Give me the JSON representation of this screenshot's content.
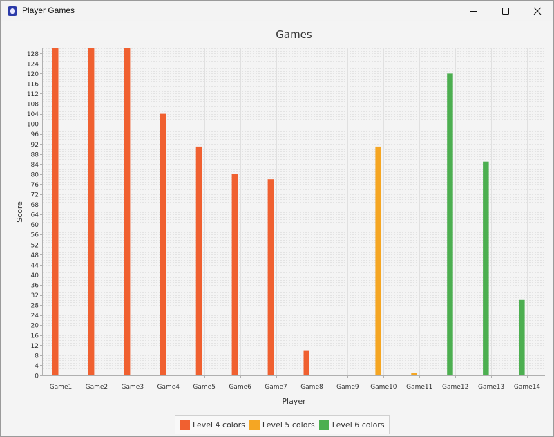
{
  "window": {
    "title": "Player Games"
  },
  "chart_data": {
    "type": "bar",
    "title": "Games",
    "xlabel": "Player",
    "ylabel": "Score",
    "ylim": [
      0,
      130
    ],
    "yticks_step": 4,
    "grid": true,
    "legend_position": "bottom",
    "categories": [
      "Game1",
      "Game2",
      "Game3",
      "Game4",
      "Game5",
      "Game6",
      "Game7",
      "Game8",
      "Game9",
      "Game10",
      "Game11",
      "Game12",
      "Game13",
      "Game14"
    ],
    "series": [
      {
        "name": "Level 4 colors",
        "color": "#f06030",
        "values": [
          130,
          130,
          130,
          104,
          91,
          80,
          78,
          10,
          null,
          null,
          null,
          null,
          null,
          null
        ]
      },
      {
        "name": "Level 5 colors",
        "color": "#f5a623",
        "values": [
          null,
          null,
          null,
          null,
          null,
          null,
          null,
          null,
          null,
          91,
          1,
          null,
          null,
          null
        ]
      },
      {
        "name": "Level 6 colors",
        "color": "#4caf50",
        "values": [
          null,
          null,
          null,
          null,
          null,
          null,
          null,
          null,
          null,
          null,
          null,
          120,
          85,
          30
        ]
      }
    ]
  }
}
